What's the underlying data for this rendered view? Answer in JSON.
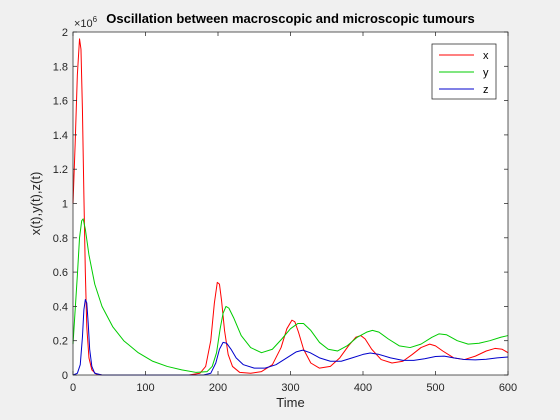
{
  "chart_data": {
    "type": "line",
    "title": "Oscillation between macroscopic and microscopic tumours",
    "xlabel": "Time",
    "ylabel": "x(t),y(t),z(t)",
    "xlim": [
      0,
      600
    ],
    "ylim": [
      0,
      2
    ],
    "exponent_label": "×10",
    "exponent_power": "6",
    "xticks": [
      0,
      100,
      200,
      300,
      400,
      500,
      600
    ],
    "xtick_labels": [
      "0",
      "100",
      "200",
      "300",
      "400",
      "500",
      "600"
    ],
    "yticks": [
      0,
      0.2,
      0.4,
      0.6,
      0.8,
      1,
      1.2,
      1.4,
      1.6,
      1.8,
      2
    ],
    "ytick_labels": [
      "0",
      "0.2",
      "0.4",
      "0.6",
      "0.8",
      "1",
      "1.2",
      "1.4",
      "1.6",
      "1.8",
      "2"
    ],
    "legend_position": "top-right",
    "series": [
      {
        "name": "x",
        "color": "#ff0000",
        "points": [
          [
            0,
            1.0
          ],
          [
            3,
            1.35
          ],
          [
            6,
            1.75
          ],
          [
            9,
            1.96
          ],
          [
            11,
            1.9
          ],
          [
            13,
            1.55
          ],
          [
            15,
            1.05
          ],
          [
            17,
            0.6
          ],
          [
            19,
            0.28
          ],
          [
            22,
            0.1
          ],
          [
            26,
            0.03
          ],
          [
            32,
            0.005
          ],
          [
            40,
            0.0
          ],
          [
            100,
            0.0
          ],
          [
            160,
            0.0
          ],
          [
            175,
            0.01
          ],
          [
            183,
            0.05
          ],
          [
            190,
            0.2
          ],
          [
            195,
            0.42
          ],
          [
            199,
            0.54
          ],
          [
            202,
            0.53
          ],
          [
            205,
            0.43
          ],
          [
            209,
            0.26
          ],
          [
            214,
            0.12
          ],
          [
            220,
            0.05
          ],
          [
            230,
            0.015
          ],
          [
            245,
            0.01
          ],
          [
            260,
            0.02
          ],
          [
            275,
            0.06
          ],
          [
            287,
            0.16
          ],
          [
            295,
            0.27
          ],
          [
            302,
            0.32
          ],
          [
            306,
            0.31
          ],
          [
            311,
            0.25
          ],
          [
            318,
            0.15
          ],
          [
            328,
            0.07
          ],
          [
            340,
            0.04
          ],
          [
            355,
            0.05
          ],
          [
            368,
            0.1
          ],
          [
            380,
            0.17
          ],
          [
            390,
            0.22
          ],
          [
            397,
            0.23
          ],
          [
            403,
            0.21
          ],
          [
            412,
            0.15
          ],
          [
            425,
            0.09
          ],
          [
            440,
            0.07
          ],
          [
            455,
            0.08
          ],
          [
            468,
            0.12
          ],
          [
            480,
            0.16
          ],
          [
            492,
            0.18
          ],
          [
            500,
            0.17
          ],
          [
            510,
            0.14
          ],
          [
            525,
            0.1
          ],
          [
            540,
            0.09
          ],
          [
            555,
            0.11
          ],
          [
            570,
            0.14
          ],
          [
            582,
            0.155
          ],
          [
            592,
            0.15
          ],
          [
            600,
            0.13
          ]
        ]
      },
      {
        "name": "y",
        "color": "#00cc00",
        "points": [
          [
            0,
            0.18
          ],
          [
            3,
            0.38
          ],
          [
            6,
            0.58
          ],
          [
            9,
            0.8
          ],
          [
            12,
            0.9
          ],
          [
            14,
            0.91
          ],
          [
            17,
            0.85
          ],
          [
            22,
            0.7
          ],
          [
            30,
            0.53
          ],
          [
            40,
            0.4
          ],
          [
            55,
            0.28
          ],
          [
            70,
            0.2
          ],
          [
            90,
            0.13
          ],
          [
            110,
            0.08
          ],
          [
            130,
            0.05
          ],
          [
            150,
            0.03
          ],
          [
            170,
            0.015
          ],
          [
            185,
            0.02
          ],
          [
            192,
            0.05
          ],
          [
            198,
            0.13
          ],
          [
            203,
            0.27
          ],
          [
            207,
            0.36
          ],
          [
            211,
            0.4
          ],
          [
            215,
            0.39
          ],
          [
            222,
            0.33
          ],
          [
            232,
            0.23
          ],
          [
            245,
            0.16
          ],
          [
            260,
            0.13
          ],
          [
            275,
            0.15
          ],
          [
            288,
            0.21
          ],
          [
            300,
            0.27
          ],
          [
            310,
            0.3
          ],
          [
            318,
            0.3
          ],
          [
            328,
            0.26
          ],
          [
            340,
            0.19
          ],
          [
            352,
            0.15
          ],
          [
            365,
            0.14
          ],
          [
            378,
            0.17
          ],
          [
            392,
            0.22
          ],
          [
            405,
            0.25
          ],
          [
            413,
            0.26
          ],
          [
            422,
            0.25
          ],
          [
            435,
            0.21
          ],
          [
            450,
            0.17
          ],
          [
            465,
            0.16
          ],
          [
            480,
            0.18
          ],
          [
            495,
            0.22
          ],
          [
            505,
            0.24
          ],
          [
            515,
            0.235
          ],
          [
            530,
            0.2
          ],
          [
            545,
            0.18
          ],
          [
            560,
            0.185
          ],
          [
            575,
            0.2
          ],
          [
            590,
            0.22
          ],
          [
            600,
            0.23
          ]
        ]
      },
      {
        "name": "z",
        "color": "#0000cc",
        "points": [
          [
            0,
            0.0
          ],
          [
            6,
            0.01
          ],
          [
            10,
            0.06
          ],
          [
            13,
            0.22
          ],
          [
            15,
            0.38
          ],
          [
            17,
            0.44
          ],
          [
            19,
            0.42
          ],
          [
            21,
            0.3
          ],
          [
            23,
            0.15
          ],
          [
            26,
            0.05
          ],
          [
            30,
            0.01
          ],
          [
            40,
            0.0
          ],
          [
            180,
            0.0
          ],
          [
            190,
            0.01
          ],
          [
            197,
            0.07
          ],
          [
            202,
            0.15
          ],
          [
            207,
            0.19
          ],
          [
            212,
            0.185
          ],
          [
            218,
            0.15
          ],
          [
            225,
            0.1
          ],
          [
            235,
            0.06
          ],
          [
            250,
            0.04
          ],
          [
            265,
            0.04
          ],
          [
            280,
            0.06
          ],
          [
            295,
            0.1
          ],
          [
            308,
            0.135
          ],
          [
            317,
            0.145
          ],
          [
            327,
            0.13
          ],
          [
            340,
            0.1
          ],
          [
            355,
            0.08
          ],
          [
            370,
            0.08
          ],
          [
            385,
            0.1
          ],
          [
            400,
            0.12
          ],
          [
            410,
            0.128
          ],
          [
            422,
            0.12
          ],
          [
            438,
            0.1
          ],
          [
            455,
            0.085
          ],
          [
            470,
            0.085
          ],
          [
            485,
            0.095
          ],
          [
            500,
            0.108
          ],
          [
            512,
            0.11
          ],
          [
            525,
            0.1
          ],
          [
            540,
            0.09
          ],
          [
            555,
            0.088
          ],
          [
            570,
            0.092
          ],
          [
            585,
            0.1
          ],
          [
            600,
            0.105
          ]
        ]
      }
    ]
  }
}
